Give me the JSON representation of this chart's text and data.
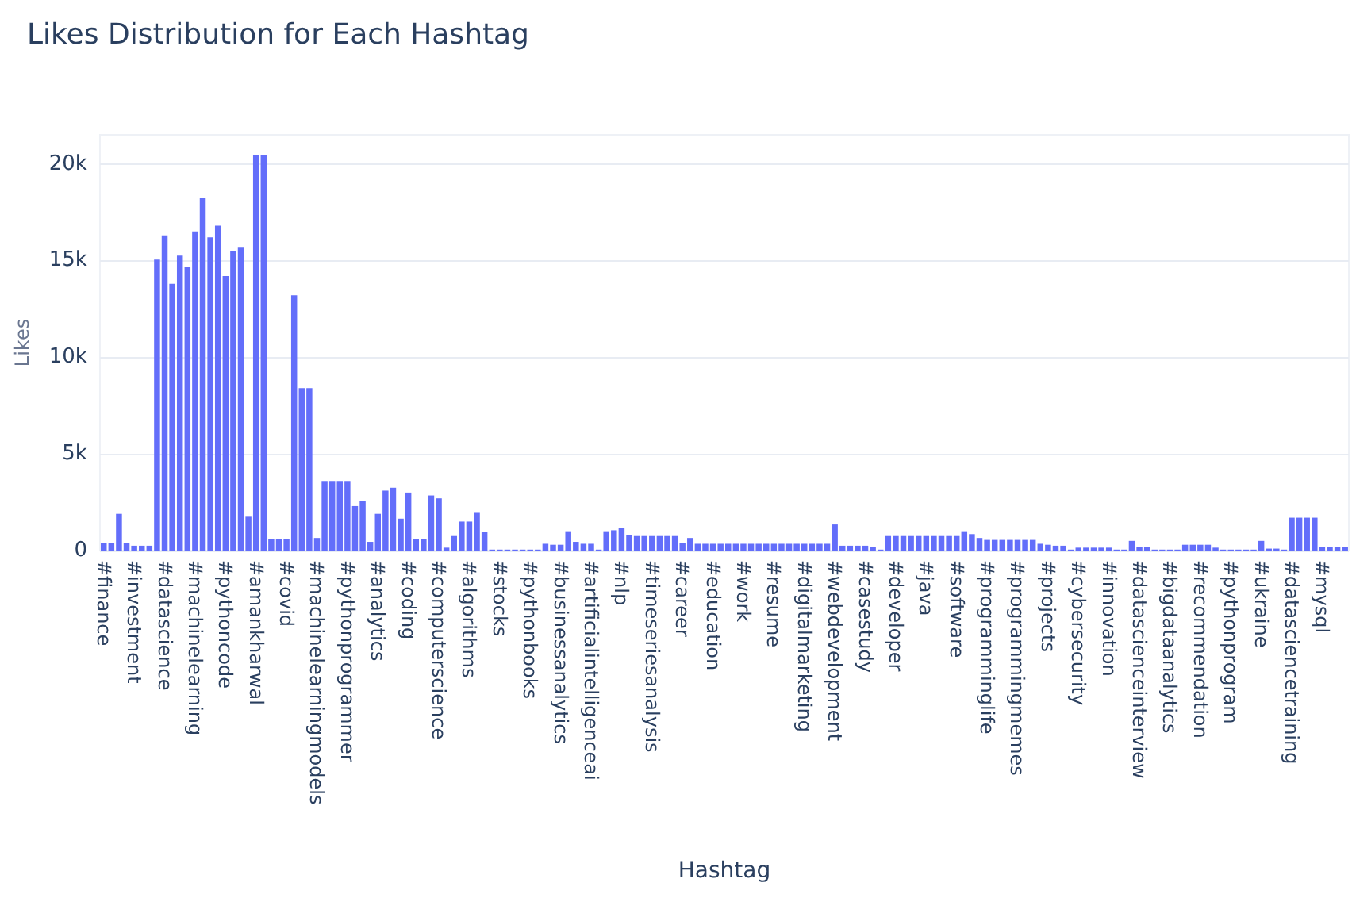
{
  "chart_data": {
    "type": "bar",
    "title": "Likes Distribution for Each Hashtag",
    "xlabel": "Hashtag",
    "ylabel": "Likes",
    "categories": [
      "#finance",
      null,
      null,
      null,
      "#investment",
      null,
      null,
      null,
      "#datascience",
      null,
      null,
      null,
      "#machinelearning",
      null,
      null,
      null,
      "#pythoncode",
      null,
      null,
      null,
      "#amankharwal",
      null,
      null,
      null,
      "#covid",
      null,
      null,
      null,
      "#machinelearningmodels",
      null,
      null,
      null,
      "#pythonprogrammer",
      null,
      null,
      null,
      "#analytics",
      null,
      null,
      null,
      "#coding",
      null,
      null,
      null,
      "#computerscience",
      null,
      null,
      null,
      "#algorithms",
      null,
      null,
      null,
      "#stocks",
      null,
      null,
      null,
      "#pythonbooks",
      null,
      null,
      null,
      "#businessanalytics",
      null,
      null,
      null,
      "#artificialintelligenceai",
      null,
      null,
      null,
      "#nlp",
      null,
      null,
      null,
      "#timeseriesanalysis",
      null,
      null,
      null,
      "#career",
      null,
      null,
      null,
      "#education",
      null,
      null,
      null,
      "#work",
      null,
      null,
      null,
      "#resume",
      null,
      null,
      null,
      "#digitalmarketing",
      null,
      null,
      null,
      "#webdevelopment",
      null,
      null,
      null,
      "#casestudy",
      null,
      null,
      null,
      "#developer",
      null,
      null,
      null,
      "#java",
      null,
      null,
      null,
      "#software",
      null,
      null,
      null,
      "#programminglife",
      null,
      null,
      null,
      "#programmingmemes",
      null,
      null,
      null,
      "#projects",
      null,
      null,
      null,
      "#cybersecurity",
      null,
      null,
      null,
      "#innovation",
      null,
      null,
      null,
      "#datascienceinterview",
      null,
      null,
      null,
      "#bigdataanalytics",
      null,
      null,
      null,
      "#recommendation",
      null,
      null,
      null,
      "#pythonprogram",
      null,
      null,
      null,
      "#ukraine",
      null,
      null,
      null,
      "#datasciencetraining",
      null,
      null,
      null,
      "#mysql",
      null,
      null,
      null
    ],
    "values": [
      400,
      400,
      1900,
      400,
      250,
      250,
      250,
      15050,
      16300,
      13800,
      15250,
      14650,
      16500,
      18250,
      16200,
      16800,
      14200,
      15500,
      15700,
      1750,
      20450,
      20450,
      600,
      600,
      600,
      13200,
      8400,
      8400,
      650,
      3600,
      3600,
      3600,
      3600,
      2300,
      2550,
      450,
      1900,
      3100,
      3250,
      1650,
      3000,
      600,
      600,
      2850,
      2700,
      150,
      750,
      1500,
      1500,
      1950,
      950,
      50,
      50,
      50,
      50,
      50,
      50,
      50,
      350,
      300,
      300,
      1000,
      450,
      350,
      350,
      50,
      1000,
      1050,
      1150,
      800,
      750,
      750,
      750,
      750,
      750,
      750,
      400,
      650,
      350,
      350,
      350,
      350,
      350,
      350,
      350,
      350,
      350,
      350,
      350,
      350,
      350,
      350,
      350,
      350,
      350,
      350,
      1350,
      250,
      250,
      250,
      250,
      200,
      50,
      750,
      750,
      750,
      750,
      750,
      750,
      750,
      750,
      750,
      750,
      1000,
      850,
      650,
      550,
      550,
      550,
      550,
      550,
      550,
      550,
      350,
      300,
      250,
      250,
      50,
      150,
      150,
      150,
      150,
      150,
      50,
      50,
      500,
      200,
      200,
      50,
      50,
      50,
      50,
      300,
      300,
      300,
      300,
      150,
      50,
      50,
      50,
      50,
      50,
      500,
      100,
      100,
      50,
      1700,
      1700,
      1700,
      1700,
      200,
      200,
      200,
      200
    ],
    "color": "#636efa",
    "ylim": [
      0,
      21500
    ],
    "yticks": [
      0,
      {
        "value": 5000,
        "label": "5k"
      },
      {
        "value": 10000,
        "label": "10k"
      },
      {
        "value": 15000,
        "label": "15k"
      },
      {
        "value": 20000,
        "label": "20k"
      }
    ],
    "grid": "y"
  }
}
